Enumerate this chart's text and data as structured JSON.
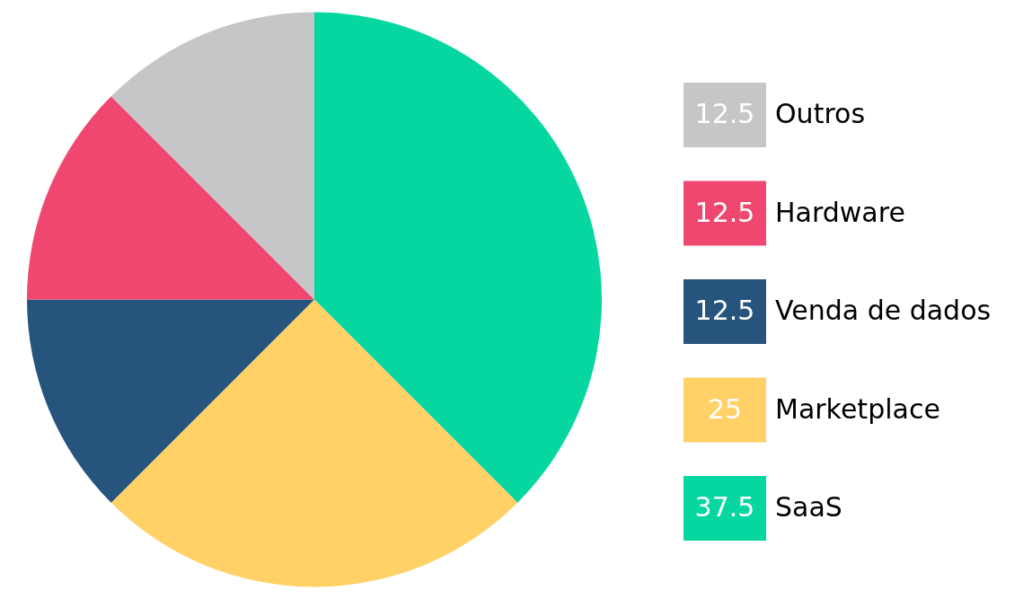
{
  "chart_data": {
    "type": "pie",
    "categories": [
      "SaaS",
      "Marketplace",
      "Venda de dados",
      "Hardware",
      "Outros"
    ],
    "values": [
      37.5,
      25,
      12.5,
      12.5,
      12.5
    ],
    "colors": [
      "#06d6a0",
      "#ffd166",
      "#26547c",
      "#ef476f",
      "#c6c6c8"
    ],
    "data_labels": true,
    "legend": "right"
  }
}
